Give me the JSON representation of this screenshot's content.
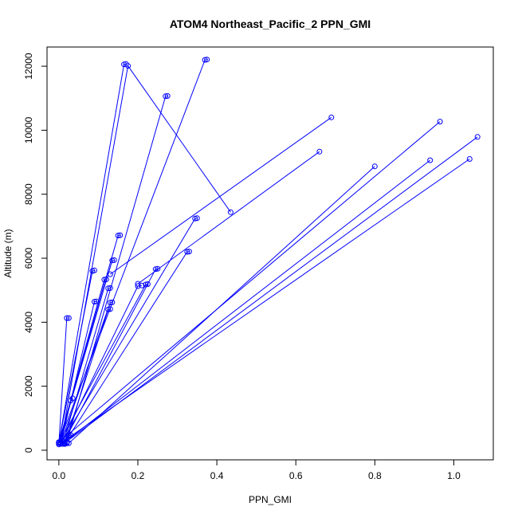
{
  "chart_data": {
    "type": "line",
    "title": "ATOM4 Northeast_Pacific_2 PPN_GMI",
    "xlabel": "PPN_GMI",
    "ylabel": "Altitude (m)",
    "xlim": [
      -0.03,
      1.1
    ],
    "ylim": [
      -300,
      12600
    ],
    "xticks": [
      0.0,
      0.2,
      0.4,
      0.6,
      0.8,
      1.0
    ],
    "xtick_labels": [
      "0.0",
      "0.2",
      "0.4",
      "0.6",
      "0.8",
      "1.0"
    ],
    "yticks": [
      0,
      2000,
      4000,
      6000,
      8000,
      10000,
      12000
    ],
    "ytick_labels": [
      "0",
      "2000",
      "4000",
      "6000",
      "8000",
      "10000",
      "12000"
    ],
    "grid": false,
    "color": "#0000ff",
    "series": [
      {
        "x": [
          0.0,
          0.02,
          0.025
        ],
        "y": [
          220,
          4130,
          4130
        ]
      },
      {
        "x": [
          0.005,
          0.03,
          0.035
        ],
        "y": [
          200,
          1550,
          1620
        ]
      },
      {
        "x": [
          0.01,
          0.025,
          0.03
        ],
        "y": [
          210,
          460,
          470
        ]
      },
      {
        "x": [
          0.0,
          0.085,
          0.09
        ],
        "y": [
          250,
          5600,
          5620
        ]
      },
      {
        "x": [
          0.005,
          0.09,
          0.095
        ],
        "y": [
          230,
          4640,
          4650
        ]
      },
      {
        "x": [
          0.0,
          0.115,
          0.12
        ],
        "y": [
          240,
          5330,
          5340
        ]
      },
      {
        "x": [
          0.01,
          0.125,
          0.13
        ],
        "y": [
          200,
          5060,
          5070
        ]
      },
      {
        "x": [
          0.005,
          0.13,
          0.135
        ],
        "y": [
          220,
          4610,
          4620
        ]
      },
      {
        "x": [
          0.015,
          0.125,
          0.13
        ],
        "y": [
          210,
          4400,
          4410
        ]
      },
      {
        "x": [
          0.0,
          0.135,
          0.14
        ],
        "y": [
          230,
          5930,
          5940
        ]
      },
      {
        "x": [
          0.0,
          0.15,
          0.155
        ],
        "y": [
          240,
          6710,
          6720
        ]
      },
      {
        "x": [
          0.005,
          0.2,
          0.21
        ],
        "y": [
          210,
          5130,
          5150
        ]
      },
      {
        "x": [
          0.0,
          0.22,
          0.225
        ],
        "y": [
          220,
          5180,
          5190
        ]
      },
      {
        "x": [
          0.01,
          0.245,
          0.25
        ],
        "y": [
          200,
          5660,
          5670
        ]
      },
      {
        "x": [
          0.015,
          0.325,
          0.33
        ],
        "y": [
          230,
          6200,
          6210
        ]
      },
      {
        "x": [
          0.005,
          0.345,
          0.35
        ],
        "y": [
          210,
          7240,
          7250
        ]
      },
      {
        "x": [
          0.02,
          0.27,
          0.275
        ],
        "y": [
          250,
          11060,
          11070
        ]
      },
      {
        "x": [
          0.0,
          0.165,
          0.17
        ],
        "y": [
          240,
          12060,
          12070
        ]
      },
      {
        "x": [
          0.005,
          0.175,
          0.435
        ],
        "y": [
          220,
          12010,
          7440
        ]
      },
      {
        "x": [
          0.0,
          0.37,
          0.375
        ],
        "y": [
          230,
          12200,
          12210
        ]
      },
      {
        "x": [
          0.13,
          0.69
        ],
        "y": [
          5500,
          10400
        ]
      },
      {
        "x": [
          0.2,
          0.66
        ],
        "y": [
          5200,
          9330
        ]
      },
      {
        "x": [
          0.0,
          0.965
        ],
        "y": [
          250,
          10270
        ]
      },
      {
        "x": [
          0.025,
          0.8
        ],
        "y": [
          220,
          8870
        ]
      },
      {
        "x": [
          0.01,
          0.94
        ],
        "y": [
          210,
          9060
        ]
      },
      {
        "x": [
          0.005,
          1.04
        ],
        "y": [
          220,
          9100
        ]
      },
      {
        "x": [
          0.015,
          1.06
        ],
        "y": [
          230,
          9790
        ]
      },
      {
        "x": [
          0.0,
          0.005,
          0.01,
          0.015,
          0.02,
          0.0
        ],
        "y": [
          180,
          200,
          210,
          195,
          215,
          235
        ]
      }
    ]
  }
}
